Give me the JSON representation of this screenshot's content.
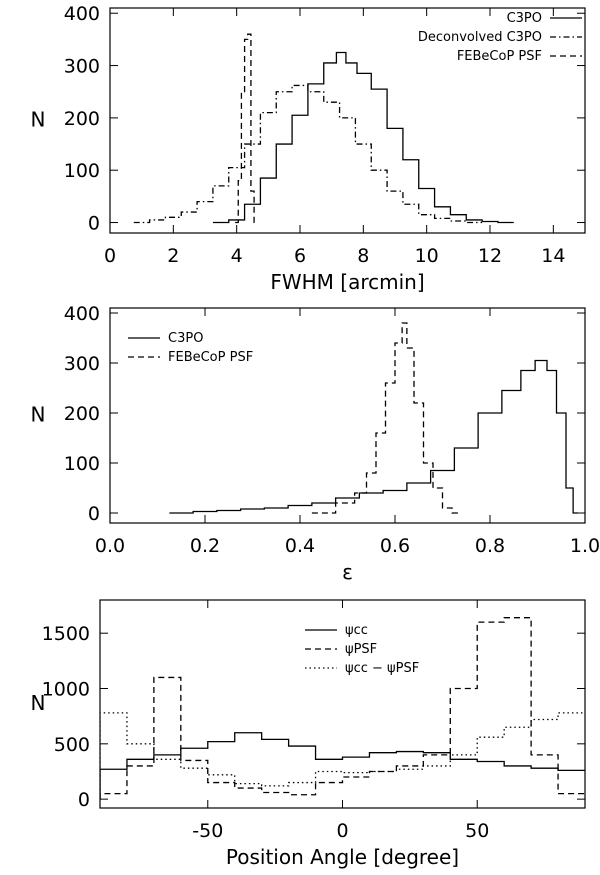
{
  "chart_data": [
    {
      "type": "histogram",
      "xlabel": "FWHM [arcmin]",
      "ylabel": "N",
      "xlim": [
        0,
        15
      ],
      "ylim": [
        -20,
        410
      ],
      "xticks": [
        0,
        2,
        4,
        6,
        8,
        10,
        12,
        14
      ],
      "yticks": [
        0,
        100,
        200,
        300,
        400
      ],
      "legend_position": "top-right",
      "series": [
        {
          "name": "C3PO",
          "dash": "solid",
          "x": [
            3.5,
            4.0,
            4.5,
            5.0,
            5.5,
            6.0,
            6.5,
            7.0,
            7.3,
            7.6,
            8.0,
            8.5,
            9.0,
            9.5,
            10.0,
            10.5,
            11.0,
            11.5,
            12.0,
            12.5
          ],
          "values": [
            0,
            5,
            35,
            85,
            150,
            205,
            265,
            305,
            325,
            305,
            285,
            255,
            180,
            120,
            65,
            30,
            15,
            5,
            2,
            0
          ]
        },
        {
          "name": "Deconvolved C3PO",
          "dash": "dashdot",
          "x": [
            1.0,
            1.5,
            2.0,
            2.5,
            3.0,
            3.5,
            4.0,
            4.5,
            5.0,
            5.5,
            6.0,
            6.5,
            7.0,
            7.5,
            8.0,
            8.5,
            9.0,
            9.5,
            10.0,
            10.5,
            11.0,
            11.5
          ],
          "values": [
            0,
            5,
            10,
            20,
            40,
            70,
            105,
            150,
            210,
            250,
            262,
            250,
            230,
            200,
            150,
            100,
            60,
            35,
            15,
            8,
            3,
            0
          ]
        },
        {
          "name": "FEBeCoP PSF",
          "dash": "dash",
          "x": [
            4.0,
            4.1,
            4.2,
            4.3,
            4.4,
            4.5,
            4.6
          ],
          "values": [
            0,
            80,
            250,
            350,
            360,
            60,
            0
          ]
        }
      ]
    },
    {
      "type": "histogram",
      "xlabel": "ε",
      "ylabel": "N",
      "xlim": [
        0.0,
        1.0
      ],
      "ylim": [
        -20,
        410
      ],
      "xticks": [
        0.0,
        0.2,
        0.4,
        0.6,
        0.8,
        1.0
      ],
      "xtick_labels": [
        "0.0",
        "0.2",
        "0.4",
        "0.6",
        "0.8",
        "1.0"
      ],
      "yticks": [
        0,
        100,
        200,
        300,
        400
      ],
      "legend_position": "top-left",
      "series": [
        {
          "name": "C3PO",
          "dash": "solid",
          "x": [
            0.15,
            0.2,
            0.25,
            0.3,
            0.35,
            0.4,
            0.45,
            0.5,
            0.55,
            0.6,
            0.65,
            0.7,
            0.75,
            0.8,
            0.85,
            0.88,
            0.91,
            0.93,
            0.95,
            0.97,
            0.98
          ],
          "values": [
            0,
            3,
            5,
            8,
            10,
            15,
            20,
            30,
            40,
            45,
            60,
            85,
            130,
            200,
            245,
            285,
            305,
            285,
            200,
            50,
            0
          ]
        },
        {
          "name": "FEBeCoP PSF",
          "dash": "dash",
          "x": [
            0.45,
            0.5,
            0.53,
            0.55,
            0.57,
            0.59,
            0.61,
            0.62,
            0.63,
            0.65,
            0.67,
            0.69,
            0.71,
            0.73
          ],
          "values": [
            0,
            20,
            40,
            80,
            160,
            260,
            340,
            380,
            330,
            220,
            100,
            50,
            10,
            0
          ]
        }
      ]
    },
    {
      "type": "histogram",
      "xlabel": "Position Angle [degree]",
      "ylabel": "N",
      "xlim": [
        -90,
        90
      ],
      "ylim": [
        -80,
        1800
      ],
      "xticks": [
        -50,
        0,
        50
      ],
      "yticks": [
        0,
        500,
        1000,
        1500
      ],
      "legend_position": "top-center",
      "series": [
        {
          "name": "ψcc",
          "dash": "solid",
          "x": [
            -85,
            -75,
            -65,
            -55,
            -45,
            -35,
            -25,
            -15,
            -5,
            5,
            15,
            25,
            35,
            45,
            55,
            65,
            75,
            85
          ],
          "values": [
            270,
            360,
            400,
            460,
            520,
            600,
            540,
            480,
            360,
            380,
            420,
            430,
            420,
            360,
            340,
            300,
            280,
            260
          ]
        },
        {
          "name": "ψPSF",
          "dash": "dash",
          "x": [
            -85,
            -75,
            -65,
            -55,
            -45,
            -35,
            -25,
            -15,
            -5,
            5,
            15,
            25,
            35,
            45,
            55,
            65,
            75,
            85
          ],
          "values": [
            50,
            300,
            1100,
            350,
            150,
            100,
            60,
            40,
            150,
            200,
            250,
            300,
            400,
            1000,
            1600,
            1640,
            400,
            50
          ]
        },
        {
          "name": "ψcc − ψPSF",
          "dash": "dot",
          "x": [
            -85,
            -75,
            -65,
            -55,
            -45,
            -35,
            -25,
            -15,
            -5,
            5,
            15,
            25,
            35,
            45,
            55,
            65,
            75,
            85
          ],
          "values": [
            780,
            500,
            360,
            280,
            220,
            140,
            120,
            150,
            250,
            240,
            250,
            270,
            300,
            400,
            560,
            650,
            720,
            780
          ]
        }
      ]
    }
  ]
}
